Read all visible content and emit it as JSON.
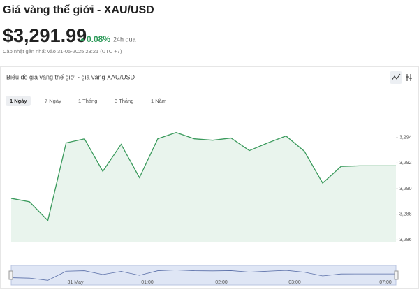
{
  "header": {
    "title": "Giá vàng thế giới - XAU/USD",
    "price": "$3,291.99",
    "change": "0.08%",
    "period": "24h qua",
    "updated": "Cập nhật gần nhất vào 31-05-2025 23:21 (UTC +7)"
  },
  "card": {
    "title": "Biểu đồ giá vàng thế giới - giá vàng XAU/USD",
    "tabs": [
      "1 Ngày",
      "7 Ngày",
      "1 Tháng",
      "3 Tháng",
      "1 Năm"
    ]
  },
  "navigator": {
    "labels": [
      "31 May",
      "01:00",
      "02:00",
      "03:00",
      "07:00"
    ]
  },
  "chart_data": {
    "type": "area",
    "color": "#3a9a5c",
    "fill": "#e9f4ed",
    "values": [
      3289.24,
      3288.97,
      3287.51,
      3293.57,
      3293.89,
      3291.35,
      3293.46,
      3290.86,
      3293.89,
      3294.38,
      3293.89,
      3293.78,
      3293.95,
      3292.97,
      3293.57,
      3294.11,
      3292.92,
      3290.43,
      3291.73,
      3291.78,
      3291.78,
      3291.78
    ],
    "ylim": [
      3285.8,
      3296
    ],
    "yticks": [
      {
        "value": 3286,
        "label": "3,286"
      },
      {
        "value": 3288,
        "label": "3,288"
      },
      {
        "value": 3290,
        "label": "3,290"
      },
      {
        "value": 3292,
        "label": "3,292"
      },
      {
        "value": 3294,
        "label": "3,294"
      }
    ]
  }
}
